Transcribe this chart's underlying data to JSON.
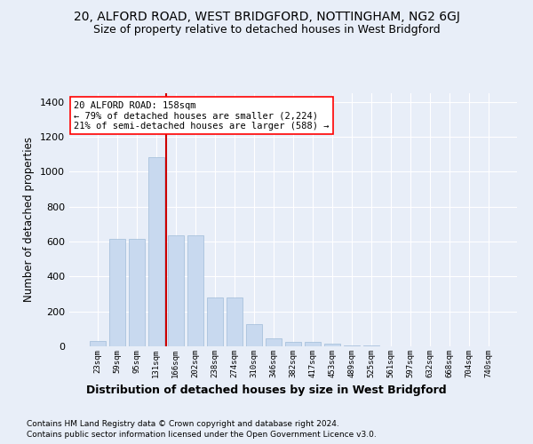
{
  "title1": "20, ALFORD ROAD, WEST BRIDGFORD, NOTTINGHAM, NG2 6GJ",
  "title2": "Size of property relative to detached houses in West Bridgford",
  "xlabel": "Distribution of detached houses by size in West Bridgford",
  "ylabel": "Number of detached properties",
  "footnote1": "Contains HM Land Registry data © Crown copyright and database right 2024.",
  "footnote2": "Contains public sector information licensed under the Open Government Licence v3.0.",
  "bar_color": "#c8d9ef",
  "bar_edge_color": "#a0bcd8",
  "vline_color": "#cc0000",
  "annotation_title": "20 ALFORD ROAD: 158sqm",
  "annotation_line1": "← 79% of detached houses are smaller (2,224)",
  "annotation_line2": "21% of semi-detached houses are larger (588) →",
  "categories": [
    "23sqm",
    "59sqm",
    "95sqm",
    "131sqm",
    "166sqm",
    "202sqm",
    "238sqm",
    "274sqm",
    "310sqm",
    "346sqm",
    "382sqm",
    "417sqm",
    "453sqm",
    "489sqm",
    "525sqm",
    "561sqm",
    "597sqm",
    "632sqm",
    "668sqm",
    "704sqm",
    "740sqm"
  ],
  "values": [
    30,
    615,
    615,
    1085,
    635,
    635,
    280,
    280,
    125,
    45,
    25,
    25,
    15,
    5,
    3,
    2,
    1,
    1,
    0,
    0,
    0
  ],
  "ylim": [
    0,
    1450
  ],
  "yticks": [
    0,
    200,
    400,
    600,
    800,
    1000,
    1200,
    1400
  ],
  "bg_color": "#e8eef8",
  "plot_bg_color": "#e8eef8",
  "grid_color": "#ffffff",
  "title1_fontsize": 10,
  "title2_fontsize": 9,
  "xlabel_fontsize": 9,
  "ylabel_fontsize": 8.5,
  "footnote_fontsize": 6.5,
  "annot_fontsize": 7.5
}
